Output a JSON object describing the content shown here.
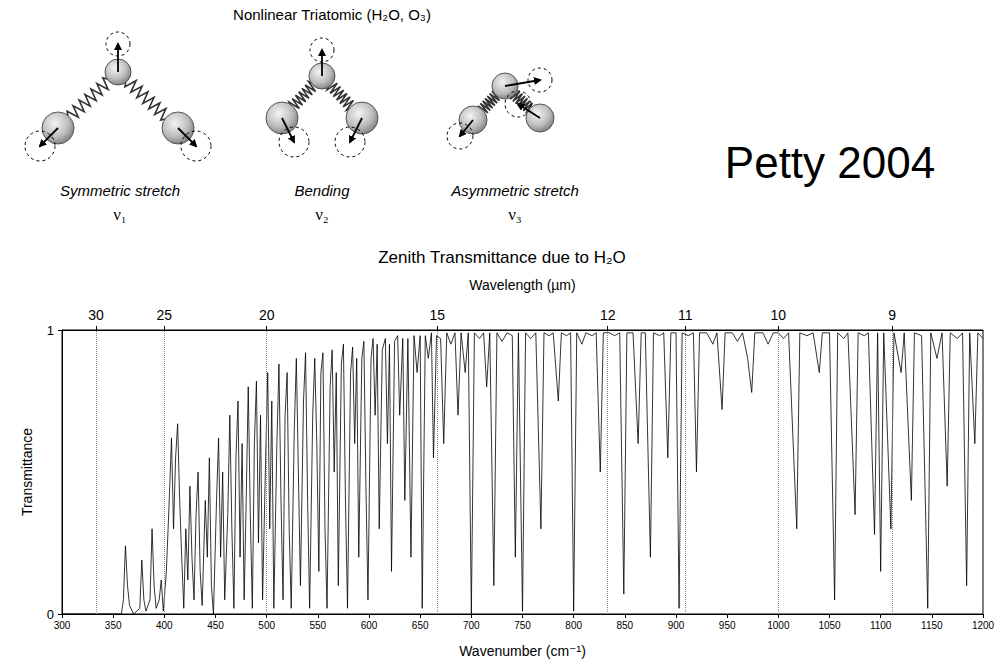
{
  "header": {
    "title": "Nonlinear Triatomic  (H₂O,  O₃)",
    "modes": [
      {
        "name": "Symmetric stretch",
        "symbol": "ν₁"
      },
      {
        "name": "Bending",
        "symbol": "ν₂"
      },
      {
        "name": "Asymmetric stretch",
        "symbol": "ν₃"
      }
    ]
  },
  "credit": "Petty 2004",
  "chart_data": {
    "type": "line",
    "title": "Zenith Transmittance due to H₂O",
    "xlabel": "Wavenumber (cm⁻¹)",
    "x2label": "Wavelength (µm)",
    "ylabel": "Transmittance",
    "color": "#000000",
    "x": [
      300,
      358,
      360,
      362,
      364,
      366,
      370,
      376,
      378,
      380,
      382,
      386,
      388,
      390,
      392,
      395,
      397,
      399,
      402,
      405,
      407,
      409,
      411,
      413,
      415,
      417,
      419,
      421,
      423,
      425,
      427,
      429,
      431,
      433,
      435,
      437,
      440,
      442,
      444,
      446,
      448,
      451,
      453,
      455,
      457,
      459,
      462,
      464,
      466,
      468,
      470,
      472,
      474,
      476,
      478,
      480,
      482,
      484,
      486,
      488,
      490,
      492,
      494,
      496,
      499,
      501,
      503,
      505,
      507,
      510,
      512,
      514,
      516,
      518,
      520,
      522,
      524,
      527,
      529,
      531,
      533,
      536,
      538,
      540,
      542,
      545,
      547,
      549,
      551,
      553,
      555,
      557,
      559,
      562,
      564,
      566,
      568,
      570,
      573,
      575,
      577,
      579,
      582,
      584,
      586,
      588,
      590,
      593,
      595,
      597,
      599,
      602,
      604,
      606,
      608,
      610,
      613,
      616,
      618,
      620,
      622,
      625,
      628,
      630,
      633,
      635,
      638,
      641,
      644,
      647,
      650,
      652,
      655,
      658,
      661,
      663,
      666,
      670,
      673,
      676,
      680,
      684,
      687,
      690,
      694,
      697,
      700,
      703,
      708,
      712,
      715,
      718,
      722,
      725,
      730,
      735,
      740,
      743,
      746,
      750,
      753,
      758,
      763,
      768,
      771,
      776,
      780,
      785,
      788,
      793,
      797,
      800,
      803,
      808,
      812,
      818,
      822,
      826,
      829,
      835,
      840,
      845,
      849,
      852,
      858,
      863,
      866,
      870,
      875,
      878,
      884,
      888,
      892,
      895,
      900,
      903,
      906,
      912,
      917,
      920,
      923,
      930,
      936,
      940,
      945,
      948,
      955,
      960,
      965,
      970,
      974,
      977,
      985,
      990,
      995,
      1000,
      1005,
      1010,
      1018,
      1021,
      1028,
      1034,
      1040,
      1043,
      1050,
      1055,
      1058,
      1064,
      1068,
      1075,
      1078,
      1084,
      1088,
      1094,
      1097,
      1100,
      1103,
      1110,
      1113,
      1120,
      1123,
      1130,
      1133,
      1140,
      1146,
      1149,
      1155,
      1160,
      1165,
      1168,
      1175,
      1180,
      1184,
      1187,
      1192,
      1195,
      1200
    ],
    "values": [
      0,
      0,
      0.05,
      0.24,
      0.1,
      0.03,
      0,
      0.02,
      0.19,
      0.05,
      0.01,
      0.05,
      0.3,
      0.1,
      0.02,
      0.05,
      0.12,
      0.01,
      0.15,
      0.42,
      0.62,
      0.3,
      0.55,
      0.67,
      0.4,
      0.2,
      0.02,
      0.3,
      0.12,
      0.45,
      0.2,
      0.05,
      0.35,
      0.5,
      0.15,
      0.03,
      0.4,
      0.2,
      0.55,
      0.1,
      0,
      0.4,
      0.62,
      0.2,
      0.5,
      0.05,
      0.35,
      0.7,
      0.3,
      0.02,
      0.55,
      0.75,
      0.2,
      0.6,
      0.05,
      0.4,
      0.8,
      0.35,
      0.02,
      0.6,
      0.82,
      0.25,
      0.7,
      0.05,
      0.55,
      0.85,
      0.3,
      0.75,
      0.02,
      0.6,
      0.88,
      0.4,
      0.05,
      0.7,
      0.85,
      0.3,
      0.02,
      0.65,
      0.9,
      0.5,
      0.1,
      0.75,
      0.92,
      0.4,
      0.02,
      0.7,
      0.9,
      0.6,
      0.15,
      0.85,
      0.92,
      0.3,
      0.02,
      0.8,
      0.93,
      0.5,
      0.85,
      0.1,
      0.88,
      0.95,
      0.4,
      0.02,
      0.85,
      0.94,
      0.6,
      0.9,
      0.2,
      0.9,
      0.96,
      0.45,
      0.05,
      0.9,
      0.97,
      0.7,
      0.95,
      0.3,
      0.93,
      0.97,
      0.6,
      0.95,
      0.15,
      0.96,
      0.98,
      0.7,
      0.97,
      0.4,
      0.97,
      0.2,
      0.98,
      0.85,
      0.98,
      0.02,
      0.98,
      0.9,
      0.99,
      0.55,
      0.98,
      0.97,
      0.6,
      0.99,
      0.95,
      0.99,
      0.7,
      0.99,
      0.85,
      0.99,
      0,
      0.99,
      0.97,
      0.99,
      0.8,
      0.99,
      0.1,
      0.99,
      0.96,
      0.99,
      0.98,
      0.2,
      0.99,
      0.01,
      0.99,
      0.97,
      0.99,
      0.3,
      0.99,
      0.98,
      0.99,
      0.75,
      0.99,
      0.98,
      0.99,
      0.01,
      0.99,
      0.95,
      0.99,
      0.98,
      0.99,
      0.5,
      0.99,
      0.99,
      0.98,
      0.99,
      0.07,
      0.99,
      0.99,
      0.6,
      0.99,
      0.99,
      0.2,
      0.99,
      0.98,
      0.99,
      0.55,
      0.99,
      0.99,
      0.02,
      0.99,
      0.98,
      0.99,
      0.5,
      0.99,
      0.99,
      0.95,
      0.99,
      0.72,
      0.99,
      0.99,
      0.96,
      0.99,
      0.9,
      0.78,
      0.99,
      0.99,
      0.95,
      0.99,
      0.99,
      0.97,
      0.99,
      0.3,
      0.99,
      0.98,
      0.99,
      0.85,
      0.99,
      0.99,
      0.05,
      0.99,
      0.97,
      0.99,
      0.35,
      0.99,
      0.98,
      0.99,
      0.28,
      0.99,
      0.15,
      0.99,
      0.3,
      0.99,
      0.85,
      0.99,
      0.4,
      0.99,
      0.98,
      0.02,
      0.99,
      0.9,
      0.99,
      0.45,
      0.99,
      0.97,
      0.99,
      0.1,
      0.99,
      0.6,
      0.99,
      0.97
    ],
    "xlim": [
      300,
      1200
    ],
    "xticks": [
      300,
      350,
      400,
      450,
      500,
      550,
      600,
      650,
      700,
      750,
      800,
      850,
      900,
      950,
      1000,
      1050,
      1100,
      1150,
      1200
    ],
    "x2lim": [
      300,
      1200
    ],
    "x2ticks": [
      {
        "value": 333.3,
        "label": "30"
      },
      {
        "value": 400,
        "label": "25"
      },
      {
        "value": 500,
        "label": "20"
      },
      {
        "value": 666.7,
        "label": "15"
      },
      {
        "value": 833.3,
        "label": "12"
      },
      {
        "value": 909.1,
        "label": "11"
      },
      {
        "value": 1000,
        "label": "10"
      },
      {
        "value": 1111.1,
        "label": "9"
      }
    ],
    "ylim": [
      0,
      1
    ],
    "yticks": [
      0,
      1
    ],
    "grid": true
  }
}
